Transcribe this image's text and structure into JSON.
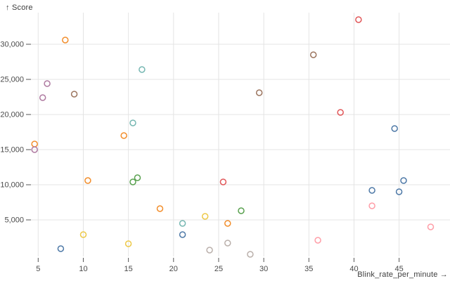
{
  "chart_data": {
    "type": "scatter",
    "title": "",
    "xlabel": "Blink_rate_per_minute →",
    "ylabel": "↑ Score",
    "x_ticks": [
      5,
      10,
      15,
      20,
      25,
      30,
      35,
      40,
      45
    ],
    "x_tick_labels": [
      "5",
      "10",
      "15",
      "20",
      "25",
      "30",
      "35",
      "40",
      "45"
    ],
    "y_ticks": [
      5000,
      10000,
      15000,
      20000,
      25000,
      30000
    ],
    "y_tick_labels": [
      "5,000",
      "10,000",
      "15,000",
      "20,000",
      "25,000",
      "30,000"
    ],
    "xlim": [
      4.2,
      49.8
    ],
    "ylim": [
      0,
      34500
    ],
    "grid": true,
    "legend": "none",
    "marker": "open-circle",
    "colors": {
      "blue": "#4e79a7",
      "orange": "#f28e2c",
      "red": "#e15759",
      "teal": "#76b7b2",
      "green": "#59a14f",
      "yellow": "#edc949",
      "purple": "#af7aa1",
      "pink": "#ff9da7",
      "brown": "#9c755f",
      "gray": "#bab0ab"
    },
    "series": [
      {
        "name": "blue",
        "color": "#4e79a7",
        "points": [
          [
            7.5,
            900
          ],
          [
            21,
            2900
          ],
          [
            44.5,
            18000
          ],
          [
            45.5,
            10600
          ],
          [
            42,
            9200
          ],
          [
            45,
            9000
          ]
        ]
      },
      {
        "name": "orange",
        "color": "#f28e2c",
        "points": [
          [
            8,
            30600
          ],
          [
            4.6,
            15800
          ],
          [
            10.5,
            10600
          ],
          [
            14.5,
            17000
          ],
          [
            18.5,
            6600
          ],
          [
            26,
            4500
          ]
        ]
      },
      {
        "name": "red",
        "color": "#e15759",
        "points": [
          [
            25.5,
            10400
          ],
          [
            40.5,
            33500
          ],
          [
            38.5,
            20300
          ]
        ]
      },
      {
        "name": "teal",
        "color": "#76b7b2",
        "points": [
          [
            16.5,
            26400
          ],
          [
            15.5,
            18800
          ],
          [
            21,
            4500
          ]
        ]
      },
      {
        "name": "green",
        "color": "#59a14f",
        "points": [
          [
            15.5,
            10400
          ],
          [
            16,
            11000
          ],
          [
            27.5,
            6300
          ]
        ]
      },
      {
        "name": "yellow",
        "color": "#edc949",
        "points": [
          [
            10,
            2900
          ],
          [
            23.5,
            5500
          ],
          [
            15,
            1600
          ]
        ]
      },
      {
        "name": "purple",
        "color": "#af7aa1",
        "points": [
          [
            6,
            24400
          ],
          [
            5.5,
            22400
          ],
          [
            4.6,
            15000
          ]
        ]
      },
      {
        "name": "pink",
        "color": "#ff9da7",
        "points": [
          [
            36,
            2100
          ],
          [
            42,
            7000
          ],
          [
            48.5,
            4000
          ]
        ]
      },
      {
        "name": "brown",
        "color": "#9c755f",
        "points": [
          [
            9,
            22900
          ],
          [
            35.5,
            28500
          ],
          [
            29.5,
            23100
          ]
        ]
      },
      {
        "name": "gray",
        "color": "#bab0ab",
        "points": [
          [
            26,
            1700
          ],
          [
            28.5,
            100
          ],
          [
            24,
            700
          ]
        ]
      }
    ],
    "style": {
      "grid_color": "#e4e4e4",
      "tick_color": "#555555",
      "tick_label_color": "#4a4a4a",
      "axis_label_color": "#3c3c3c",
      "background": "#ffffff"
    }
  }
}
